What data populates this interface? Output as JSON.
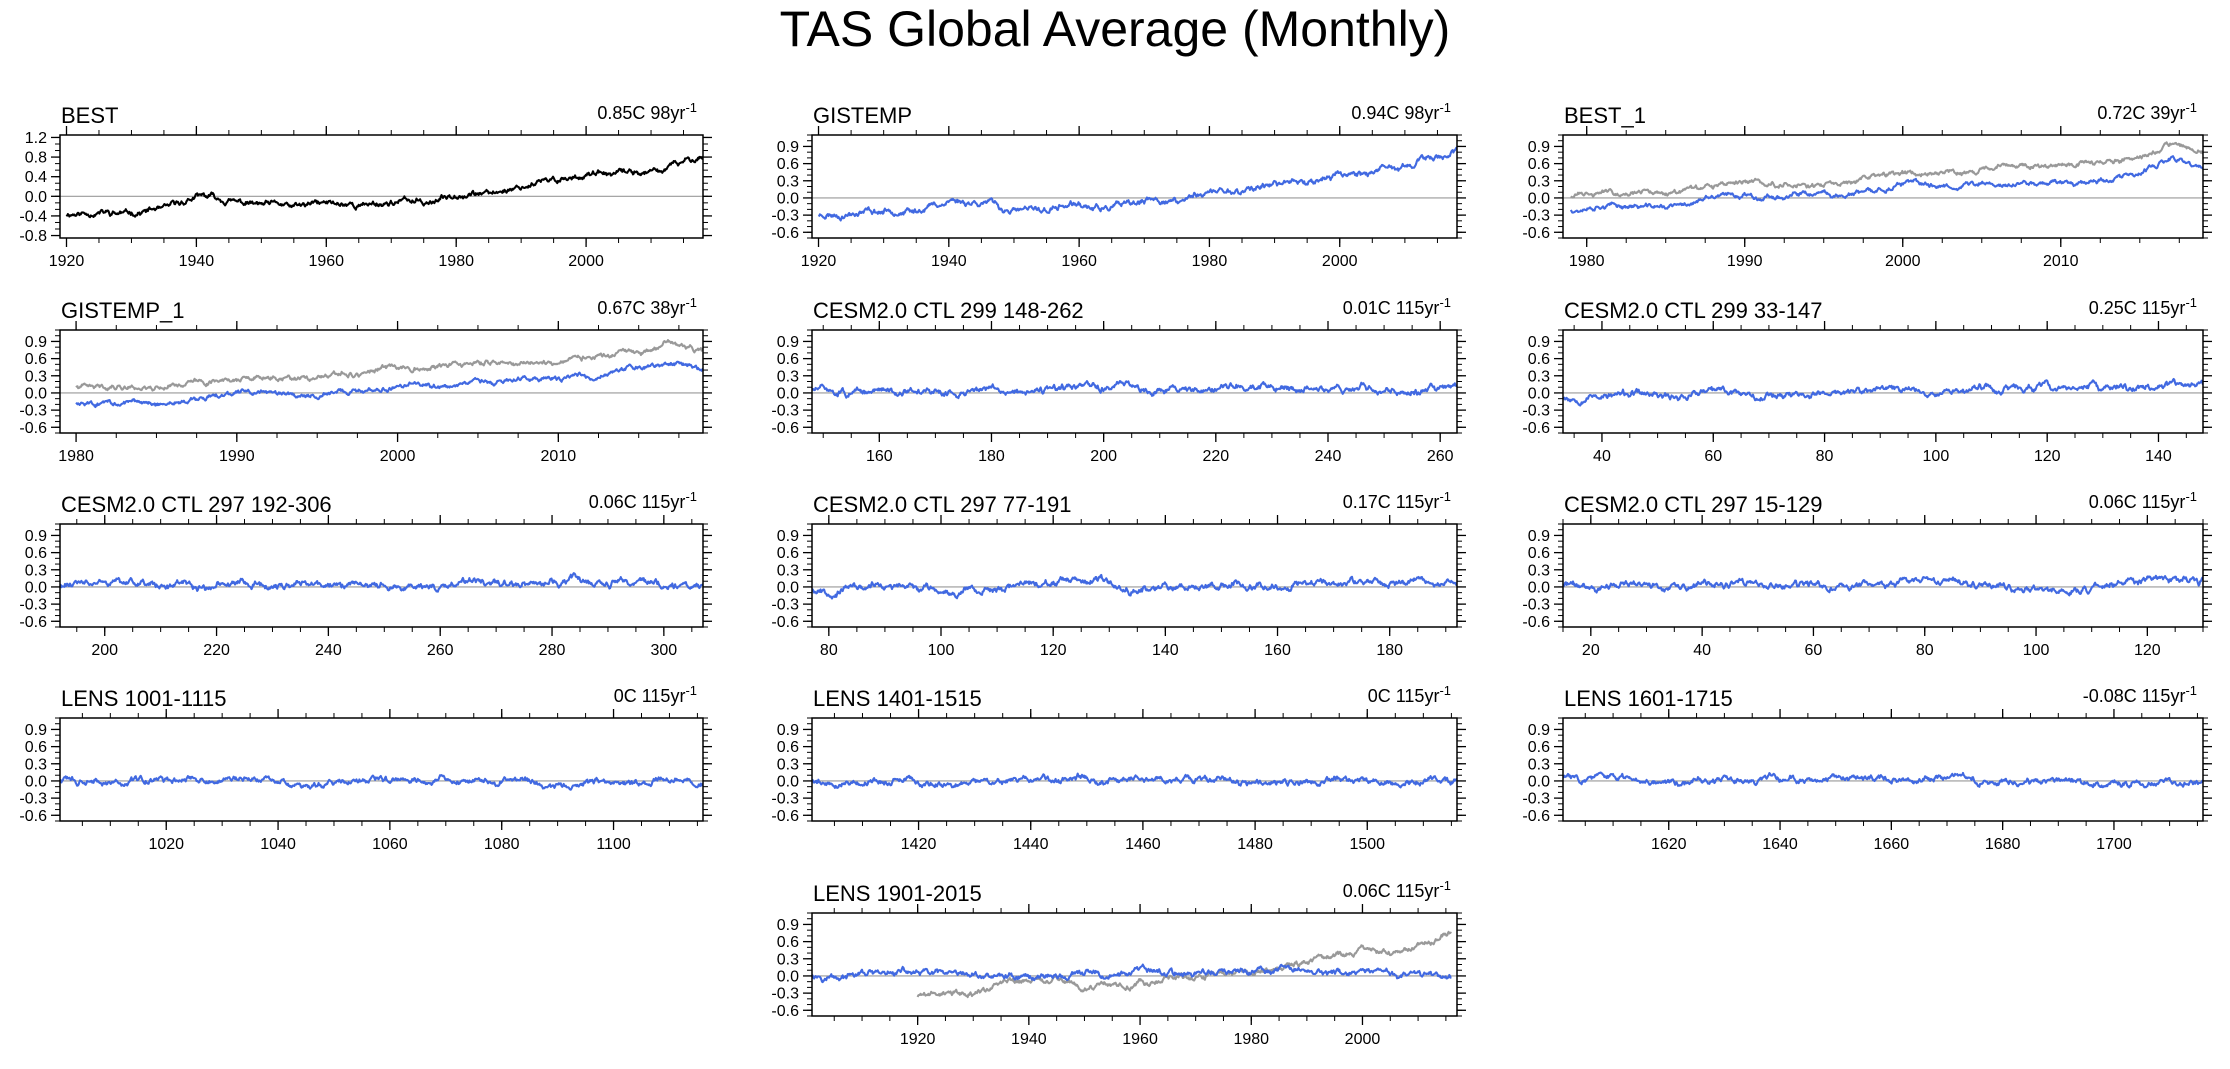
{
  "title": "TAS Global Average (Monthly)",
  "colors": {
    "model": "#4169E1",
    "reference": "#999999",
    "black": "#000000",
    "zero_line": "#999999"
  },
  "chart_data": [
    {
      "type": "line",
      "title": "BEST",
      "trend": "0.85C 98yr",
      "trend_exp": "-1",
      "xlim": [
        1919,
        2018
      ],
      "ylim": [
        -0.85,
        1.25
      ],
      "xticks": [
        1920,
        1940,
        1960,
        1980,
        2000
      ],
      "yticks": [
        -0.8,
        -0.4,
        0.0,
        0.4,
        0.8,
        1.2
      ],
      "yticklabels": [
        "-0.8",
        "-0.4",
        "0.0",
        "0.4",
        "0.8",
        "1.2"
      ],
      "series": [
        {
          "name": "BEST",
          "color": "black",
          "x": [
            1920,
            1925,
            1930,
            1935,
            1940,
            1945,
            1950,
            1955,
            1960,
            1965,
            1970,
            1975,
            1980,
            1985,
            1990,
            1995,
            2000,
            2005,
            2010,
            2015,
            2018
          ],
          "y": [
            -0.35,
            -0.3,
            -0.3,
            -0.25,
            -0.02,
            -0.05,
            -0.2,
            -0.25,
            -0.15,
            -0.2,
            -0.12,
            -0.1,
            0.05,
            0.05,
            0.2,
            0.3,
            0.45,
            0.45,
            0.5,
            0.7,
            0.85
          ],
          "noise": 0.14,
          "seed": 11
        }
      ]
    },
    {
      "type": "line",
      "title": "GISTEMP",
      "trend": "0.94C 98yr",
      "trend_exp": "-1",
      "xlim": [
        1919,
        2018
      ],
      "ylim": [
        -0.7,
        1.1
      ],
      "xticks": [
        1920,
        1940,
        1960,
        1980,
        2000
      ],
      "yticks": [
        -0.6,
        -0.3,
        0.0,
        0.3,
        0.6,
        0.9
      ],
      "yticklabels": [
        "-0.6",
        "-0.3",
        "0.0",
        "0.3",
        "0.6",
        "0.9"
      ],
      "series": [
        {
          "name": "GISTEMP",
          "color": "model",
          "x": [
            1920,
            1925,
            1930,
            1935,
            1940,
            1945,
            1950,
            1955,
            1960,
            1965,
            1970,
            1975,
            1980,
            1985,
            1990,
            1995,
            2000,
            2005,
            2010,
            2015,
            2018
          ],
          "y": [
            -0.3,
            -0.3,
            -0.28,
            -0.2,
            -0.05,
            -0.05,
            -0.2,
            -0.22,
            -0.12,
            -0.15,
            -0.08,
            -0.05,
            0.1,
            0.1,
            0.25,
            0.3,
            0.45,
            0.45,
            0.55,
            0.7,
            0.85
          ],
          "noise": 0.13,
          "seed": 23
        }
      ]
    },
    {
      "type": "line",
      "title": "BEST_1",
      "trend": "0.72C 39yr",
      "trend_exp": "-1",
      "xlim": [
        1978.5,
        2019
      ],
      "ylim": [
        -0.7,
        1.1
      ],
      "xticks": [
        1980,
        1990,
        2000,
        2010
      ],
      "yticks": [
        -0.6,
        -0.3,
        0.0,
        0.3,
        0.6,
        0.9
      ],
      "yticklabels": [
        "-0.6",
        "-0.3",
        "0.0",
        "0.3",
        "0.6",
        "0.9"
      ],
      "series": [
        {
          "name": "reference",
          "color": "reference",
          "x": [
            1979,
            1985,
            1990,
            1995,
            2000,
            2005,
            2010,
            2015,
            2017,
            2019
          ],
          "y": [
            0.05,
            0.1,
            0.3,
            0.25,
            0.45,
            0.5,
            0.55,
            0.7,
            0.95,
            0.8
          ],
          "noise": 0.1,
          "seed": 31
        },
        {
          "name": "model",
          "color": "model",
          "x": [
            1979,
            1985,
            1990,
            1995,
            2000,
            2005,
            2010,
            2015,
            2017,
            2019
          ],
          "y": [
            -0.2,
            -0.15,
            0.05,
            0.0,
            0.2,
            0.25,
            0.3,
            0.45,
            0.7,
            0.55
          ],
          "noise": 0.1,
          "seed": 37
        }
      ]
    },
    {
      "type": "line",
      "title": "GISTEMP_1",
      "trend": "0.67C 38yr",
      "trend_exp": "-1",
      "xlim": [
        1979,
        2019
      ],
      "ylim": [
        -0.7,
        1.1
      ],
      "xticks": [
        1980,
        1990,
        2000,
        2010
      ],
      "yticks": [
        -0.6,
        -0.3,
        0.0,
        0.3,
        0.6,
        0.9
      ],
      "yticklabels": [
        "-0.6",
        "-0.3",
        "0.0",
        "0.3",
        "0.6",
        "0.9"
      ],
      "series": [
        {
          "name": "reference",
          "color": "reference",
          "x": [
            1980,
            1985,
            1990,
            1995,
            2000,
            2005,
            2010,
            2015,
            2017,
            2019
          ],
          "y": [
            0.1,
            0.1,
            0.25,
            0.25,
            0.45,
            0.5,
            0.55,
            0.7,
            0.9,
            0.75
          ],
          "noise": 0.1,
          "seed": 41
        },
        {
          "name": "model",
          "color": "model",
          "x": [
            1980,
            1985,
            1990,
            1995,
            2000,
            2005,
            2010,
            2015,
            2017,
            2019
          ],
          "y": [
            -0.15,
            -0.2,
            0.0,
            -0.05,
            0.15,
            0.2,
            0.25,
            0.4,
            0.55,
            0.45
          ],
          "noise": 0.1,
          "seed": 43
        }
      ]
    },
    {
      "type": "line",
      "title": "CESM2.0 CTL 299 148-262",
      "trend": "0.01C 115yr",
      "trend_exp": "-1",
      "xlim": [
        148,
        263
      ],
      "ylim": [
        -0.7,
        1.1
      ],
      "xticks": [
        160,
        180,
        200,
        220,
        240,
        260
      ],
      "yticks": [
        -0.6,
        -0.3,
        0.0,
        0.3,
        0.6,
        0.9
      ],
      "yticklabels": [
        "-0.6",
        "-0.3",
        "0.0",
        "0.3",
        "0.6",
        "0.9"
      ],
      "series": [
        {
          "name": "model",
          "color": "model",
          "x": [
            148,
            263
          ],
          "y": [
            0.05,
            0.05
          ],
          "noise": 0.14,
          "seed": 51
        }
      ]
    },
    {
      "type": "line",
      "title": "CESM2.0 CTL 299 33-147",
      "trend": "0.25C 115yr",
      "trend_exp": "-1",
      "xlim": [
        33,
        148
      ],
      "ylim": [
        -0.7,
        1.1
      ],
      "xticks": [
        40,
        60,
        80,
        100,
        120,
        140
      ],
      "yticks": [
        -0.6,
        -0.3,
        0.0,
        0.3,
        0.6,
        0.9
      ],
      "yticklabels": [
        "-0.6",
        "-0.3",
        "0.0",
        "0.3",
        "0.6",
        "0.9"
      ],
      "series": [
        {
          "name": "model",
          "color": "model",
          "x": [
            33,
            148
          ],
          "y": [
            -0.05,
            0.12
          ],
          "noise": 0.14,
          "seed": 53
        }
      ]
    },
    {
      "type": "line",
      "title": "CESM2.0 CTL 297 192-306",
      "trend": "0.06C 115yr",
      "trend_exp": "-1",
      "xlim": [
        192,
        307
      ],
      "ylim": [
        -0.7,
        1.1
      ],
      "xticks": [
        200,
        220,
        240,
        260,
        280,
        300
      ],
      "yticks": [
        -0.6,
        -0.3,
        0.0,
        0.3,
        0.6,
        0.9
      ],
      "yticklabels": [
        "-0.6",
        "-0.3",
        "0.0",
        "0.3",
        "0.6",
        "0.9"
      ],
      "series": [
        {
          "name": "model",
          "color": "model",
          "x": [
            192,
            307
          ],
          "y": [
            0.02,
            0.06
          ],
          "noise": 0.14,
          "seed": 61
        }
      ]
    },
    {
      "type": "line",
      "title": "CESM2.0 CTL 297 77-191",
      "trend": "0.17C 115yr",
      "trend_exp": "-1",
      "xlim": [
        77,
        192
      ],
      "ylim": [
        -0.7,
        1.1
      ],
      "xticks": [
        80,
        100,
        120,
        140,
        160,
        180
      ],
      "yticks": [
        -0.6,
        -0.3,
        0.0,
        0.3,
        0.6,
        0.9
      ],
      "yticklabels": [
        "-0.6",
        "-0.3",
        "0.0",
        "0.3",
        "0.6",
        "0.9"
      ],
      "series": [
        {
          "name": "model",
          "color": "model",
          "x": [
            77,
            192
          ],
          "y": [
            -0.03,
            0.1
          ],
          "noise": 0.14,
          "seed": 67
        }
      ]
    },
    {
      "type": "line",
      "title": "CESM2.0 CTL 297 15-129",
      "trend": "0.06C 115yr",
      "trend_exp": "-1",
      "xlim": [
        15,
        130
      ],
      "ylim": [
        -0.7,
        1.1
      ],
      "xticks": [
        20,
        40,
        60,
        80,
        100,
        120
      ],
      "yticks": [
        -0.6,
        -0.3,
        0.0,
        0.3,
        0.6,
        0.9
      ],
      "yticklabels": [
        "-0.6",
        "-0.3",
        "0.0",
        "0.3",
        "0.6",
        "0.9"
      ],
      "series": [
        {
          "name": "model",
          "color": "model",
          "x": [
            15,
            130
          ],
          "y": [
            0.03,
            0.06
          ],
          "noise": 0.14,
          "seed": 71
        }
      ]
    },
    {
      "type": "line",
      "title": "LENS 1001-1115",
      "trend": "0C 115yr",
      "trend_exp": "-1",
      "xlim": [
        1001,
        1116
      ],
      "ylim": [
        -0.7,
        1.1
      ],
      "xticks": [
        1020,
        1040,
        1060,
        1080,
        1100
      ],
      "yticks": [
        -0.6,
        -0.3,
        0.0,
        0.3,
        0.6,
        0.9
      ],
      "yticklabels": [
        "-0.6",
        "-0.3",
        "0.0",
        "0.3",
        "0.6",
        "0.9"
      ],
      "series": [
        {
          "name": "model",
          "color": "model",
          "x": [
            1001,
            1116
          ],
          "y": [
            0.0,
            0.0
          ],
          "noise": 0.13,
          "seed": 73
        }
      ]
    },
    {
      "type": "line",
      "title": "LENS 1401-1515",
      "trend": "0C 115yr",
      "trend_exp": "-1",
      "xlim": [
        1401,
        1516
      ],
      "ylim": [
        -0.7,
        1.1
      ],
      "xticks": [
        1420,
        1440,
        1460,
        1480,
        1500
      ],
      "yticks": [
        -0.6,
        -0.3,
        0.0,
        0.3,
        0.6,
        0.9
      ],
      "yticklabels": [
        "-0.6",
        "-0.3",
        "0.0",
        "0.3",
        "0.6",
        "0.9"
      ],
      "series": [
        {
          "name": "model",
          "color": "model",
          "x": [
            1401,
            1516
          ],
          "y": [
            0.0,
            0.0
          ],
          "noise": 0.13,
          "seed": 79
        }
      ]
    },
    {
      "type": "line",
      "title": "LENS 1601-1715",
      "trend": "-0.08C 115yr",
      "trend_exp": "-1",
      "xlim": [
        1601,
        1716
      ],
      "ylim": [
        -0.7,
        1.1
      ],
      "xticks": [
        1620,
        1640,
        1660,
        1680,
        1700
      ],
      "yticks": [
        -0.6,
        -0.3,
        0.0,
        0.3,
        0.6,
        0.9
      ],
      "yticklabels": [
        "-0.6",
        "-0.3",
        "0.0",
        "0.3",
        "0.6",
        "0.9"
      ],
      "series": [
        {
          "name": "model",
          "color": "model",
          "x": [
            1601,
            1716
          ],
          "y": [
            0.06,
            -0.03
          ],
          "noise": 0.13,
          "seed": 83
        }
      ]
    },
    {
      "type": "line",
      "title": "LENS 1901-2015",
      "trend": "0.06C 115yr",
      "trend_exp": "-1",
      "xlim": [
        1901,
        2017
      ],
      "ylim": [
        -0.7,
        1.1
      ],
      "xticks": [
        1920,
        1940,
        1960,
        1980,
        2000
      ],
      "yticks": [
        -0.6,
        -0.3,
        0.0,
        0.3,
        0.6,
        0.9
      ],
      "yticklabels": [
        "-0.6",
        "-0.3",
        "0.0",
        "0.3",
        "0.6",
        "0.9"
      ],
      "series": [
        {
          "name": "reference",
          "color": "reference",
          "x": [
            1920,
            1925,
            1930,
            1940,
            1945,
            1950,
            1960,
            1970,
            1980,
            1990,
            2000,
            2010,
            2016
          ],
          "y": [
            -0.35,
            -0.3,
            -0.3,
            -0.05,
            -0.05,
            -0.2,
            -0.12,
            -0.05,
            0.1,
            0.25,
            0.45,
            0.55,
            0.75
          ],
          "noise": 0.12,
          "seed": 89
        },
        {
          "name": "model",
          "color": "model",
          "x": [
            1901,
            1940,
            1980,
            2016
          ],
          "y": [
            0.05,
            0.02,
            0.08,
            0.0
          ],
          "noise": 0.13,
          "seed": 97
        }
      ]
    }
  ]
}
